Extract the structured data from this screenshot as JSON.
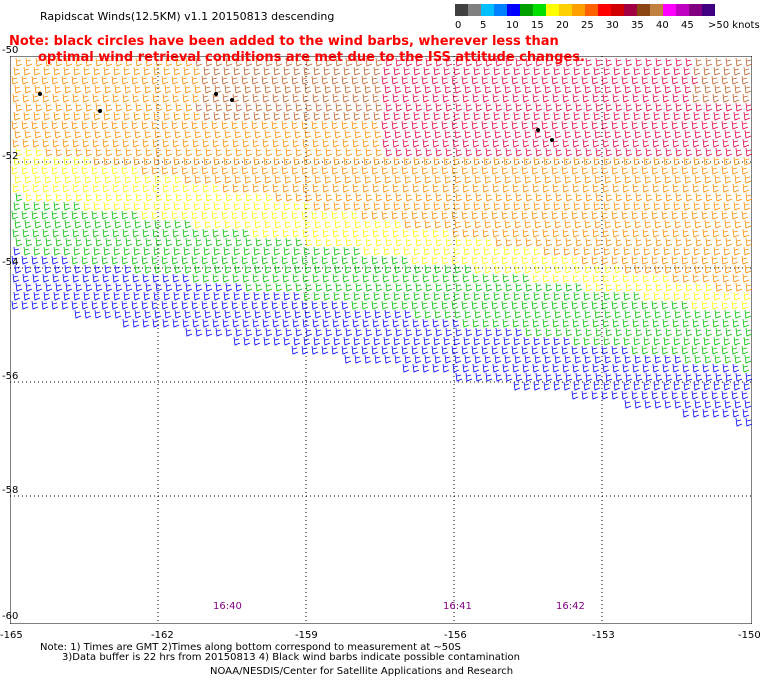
{
  "header": {
    "title": "Rapidscat Winds(12.5KM) v1.1 20150813 descending"
  },
  "note": {
    "line1": "Note: black circles have been added to the wind barbs, wherever less than",
    "line2": "optimal wind retrieval conditions are met due to the ISS attitude changes."
  },
  "colorbar": {
    "colors": [
      "#404040",
      "#808080",
      "#00bfff",
      "#0080ff",
      "#0000ff",
      "#00a000",
      "#00e000",
      "#ffff00",
      "#ffd000",
      "#ffa000",
      "#ff6000",
      "#ff0000",
      "#d00000",
      "#a00040",
      "#8b4513",
      "#c08040",
      "#ff00ff",
      "#c000c0",
      "#800080",
      "#400080"
    ],
    "labels": [
      "0",
      "5",
      "10",
      "15",
      "20",
      "25",
      "30",
      "35",
      "40",
      "45",
      ">50 knots"
    ]
  },
  "axes": {
    "lon_ticks": [
      "-165",
      "-162",
      "-159",
      "-156",
      "-153",
      "-150"
    ],
    "lat_ticks": [
      "-50",
      "-52",
      "-54",
      "-56",
      "-58",
      "-60"
    ]
  },
  "times": [
    "16:40",
    "16:41",
    "16:42"
  ],
  "footer": {
    "line1": "Note: 1) Times are GMT 2)Times along bottom correspond to measurement at ~50S",
    "line2": "3)Data buffer is 22 hrs from 20150813 4) Black wind barbs indicate possible contamination",
    "line3": "NOAA/NESDIS/Center for Satellite Applications and Research"
  },
  "bands": {
    "colors": {
      "brown": "#c06028",
      "red": "#e0003c",
      "orange": "#ff8c00",
      "yellow": "#ffff00",
      "green": "#00c000",
      "blue": "#0000ff"
    }
  }
}
